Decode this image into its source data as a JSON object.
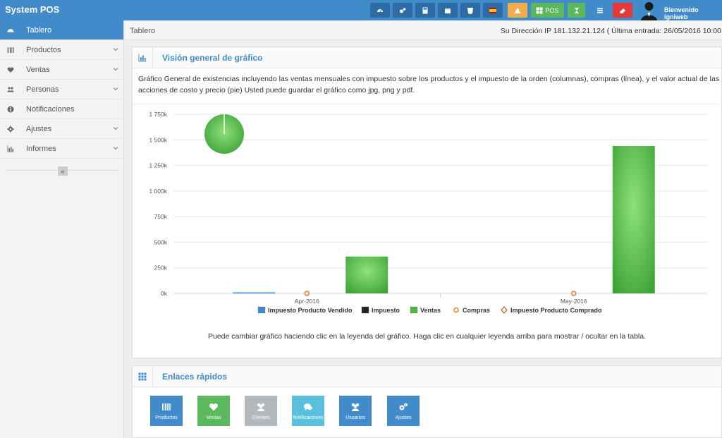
{
  "app": {
    "title": "System POS"
  },
  "header": {
    "pos_label": "POS",
    "welcome": "Bienvenido igniweb",
    "buttons": [
      {
        "icon": "dashboard-icon",
        "color": "#2e6da4"
      },
      {
        "icon": "cogs-icon",
        "color": "#2e6da4"
      },
      {
        "icon": "calculator-icon",
        "color": "#2e6da4"
      },
      {
        "icon": "calendar-icon",
        "color": "#2e6da4"
      },
      {
        "icon": "css3-icon",
        "color": "#2e6da4"
      },
      {
        "icon": "spanish-flag-icon",
        "color": "#2e6da4"
      },
      {
        "icon": "warning-icon",
        "color": "#f0ad4e"
      },
      {
        "icon": "pos-grid-icon",
        "color": "#5cb85c"
      },
      {
        "icon": "hourglass-icon",
        "color": "#5cb85c"
      },
      {
        "icon": "list-icon",
        "color": "#428bca"
      },
      {
        "icon": "eraser-icon",
        "color": "#e53939"
      }
    ]
  },
  "sidebar": {
    "items": [
      {
        "label": "Tablero",
        "icon": "dashboard-icon",
        "active": true,
        "has_sub": false
      },
      {
        "label": "Productos",
        "icon": "barcode-icon",
        "active": false,
        "has_sub": true
      },
      {
        "label": "Ventas",
        "icon": "heart-icon",
        "active": false,
        "has_sub": true
      },
      {
        "label": "Personas",
        "icon": "users-icon",
        "active": false,
        "has_sub": true
      },
      {
        "label": "Notificaciones",
        "icon": "info-icon",
        "active": false,
        "has_sub": false
      },
      {
        "label": "Ajustes",
        "icon": "cog-icon",
        "active": false,
        "has_sub": true
      },
      {
        "label": "Informes",
        "icon": "bar-chart-icon",
        "active": false,
        "has_sub": true
      }
    ],
    "collapse_label": "«"
  },
  "breadcrumb": {
    "current": "Tablero",
    "ip_info": "Su Dirección IP 181.132.21.124 ( Última entrada: 26/05/2016 10:00"
  },
  "overview": {
    "title": "Visión general de gráfico",
    "description": "Gráfico General de existencias incluyendo las ventas mensuales con impuesto sobre los productos y el impuesto de la orden (columnas), compras (línea), y el valor actual de las acciones de costo y precio (pie) Usted puede guardar el gráfico como jpg, png y pdf.",
    "note": "Puede cambiar gráfico haciendo clic en la leyenda del gráfico. Haga clic en cualquier leyenda arriba para mostrar / ocultar en la tabla."
  },
  "chart_data": {
    "type": "bar",
    "categories": [
      "Apr-2016",
      "May-2016"
    ],
    "ylim": [
      0,
      1750000
    ],
    "yticks": [
      0,
      250000,
      500000,
      750000,
      1000000,
      1250000,
      1500000,
      1750000
    ],
    "ytick_labels": [
      "0k",
      "250k",
      "500k",
      "750k",
      "1 000k",
      "1 250k",
      "1 500k",
      "1 750k"
    ],
    "series": [
      {
        "name": "Impuesto Producto Vendido",
        "kind": "column",
        "color": "#428bca",
        "values": [
          5000,
          0
        ]
      },
      {
        "name": "Impuesto",
        "kind": "column",
        "color": "#222222",
        "values": [
          0,
          0
        ]
      },
      {
        "name": "Ventas",
        "kind": "column",
        "color": "#4cb848",
        "values": [
          360000,
          1440000
        ]
      },
      {
        "name": "Compras",
        "kind": "line",
        "color": "#e67e22",
        "values": [
          0,
          0
        ]
      },
      {
        "name": "Impuesto Producto Comprado",
        "kind": "line",
        "color": "#c07a3a",
        "values": [
          0,
          0
        ]
      }
    ],
    "pie": {
      "slices": [
        {
          "name": "Ventas",
          "value": 99.9,
          "color": "#4cb848"
        },
        {
          "name": "",
          "value": 0.1,
          "color": "#ffffff"
        }
      ]
    },
    "grid": true,
    "legend": "bottom"
  },
  "quicklinks": {
    "title": "Enlaces rápidos",
    "items": [
      {
        "label": "Productos",
        "icon": "barcode-icon",
        "color": "#428bca"
      },
      {
        "label": "Ventas",
        "icon": "heart-icon",
        "color": "#5cb85c"
      },
      {
        "label": "Clientes",
        "icon": "users-icon",
        "color": "#b3b8bd"
      },
      {
        "label": "Notificaciones",
        "icon": "comments-icon",
        "color": "#5bc0de"
      },
      {
        "label": "Usuarios",
        "icon": "users-icon",
        "color": "#428bca"
      },
      {
        "label": "Ajustes",
        "icon": "cogs-icon",
        "color": "#428bca"
      }
    ]
  }
}
